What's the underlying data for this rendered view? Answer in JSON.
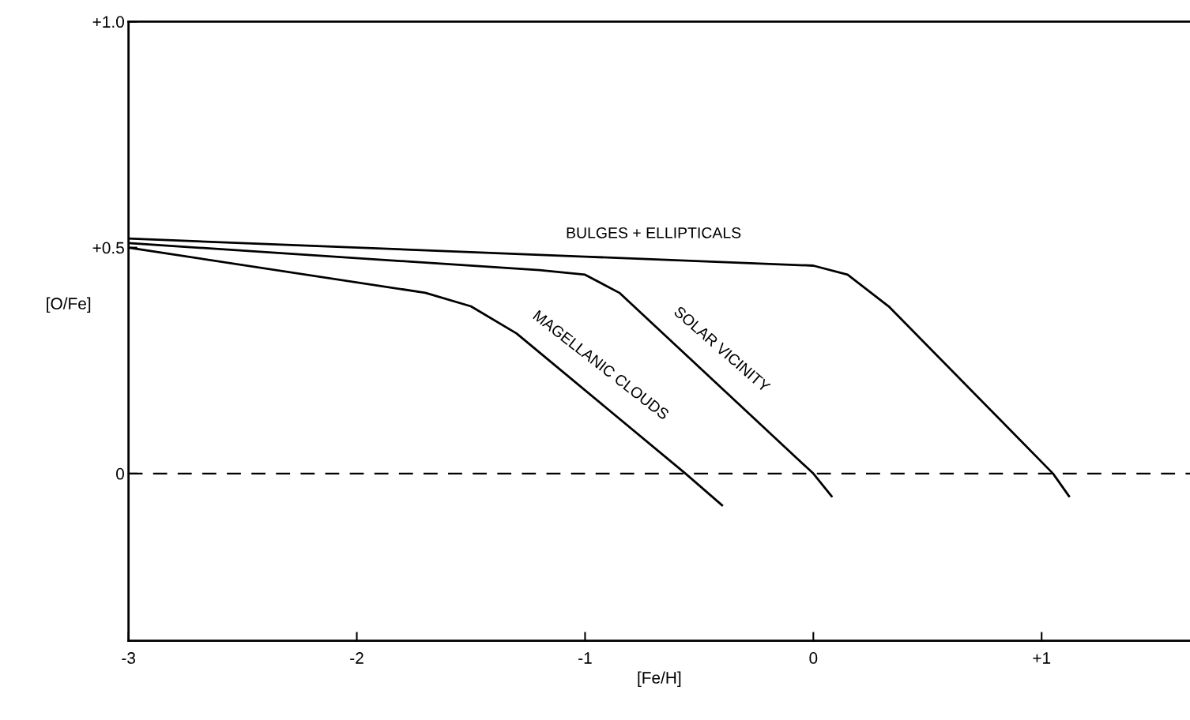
{
  "chart_data": {
    "type": "line",
    "xlabel": "[Fe/H]",
    "ylabel": "[O/Fe]",
    "xlim": [
      -3,
      1.65
    ],
    "ylim": [
      -0.37,
      1.0
    ],
    "xticks": [
      -3,
      -2,
      -1,
      0,
      {
        "value": 1,
        "label": "+1"
      }
    ],
    "yticks": [
      0,
      {
        "value": 0.5,
        "label": "+0.5"
      },
      {
        "value": 1.0,
        "label": "+1.0"
      }
    ],
    "grid": false,
    "legend": false,
    "marker": "none",
    "line_style": "solid",
    "ref_lines": [
      {
        "axis": "y",
        "value": 0,
        "line_style": "dashed",
        "color": "#000000"
      }
    ],
    "series": [
      {
        "name": "BULGES + ELLIPTICALS",
        "color": "#000000",
        "x": [
          -3,
          -1,
          0,
          0.15,
          0.33,
          1.05,
          1.12
        ],
        "values": [
          0.52,
          0.48,
          0.46,
          0.44,
          0.37,
          0.0,
          -0.05
        ]
      },
      {
        "name": "SOLAR VICINITY",
        "color": "#000000",
        "x": [
          -3,
          -1.2,
          -1,
          -0.85,
          0,
          0.08
        ],
        "values": [
          0.51,
          0.45,
          0.44,
          0.4,
          0.0,
          -0.05
        ]
      },
      {
        "name": "MAGELLANIC CLOUDS",
        "color": "#000000",
        "x": [
          -3,
          -1.7,
          -1.5,
          -1.3,
          -0.56,
          -0.4
        ],
        "values": [
          0.5,
          0.4,
          0.37,
          0.31,
          0.0,
          -0.07
        ]
      }
    ]
  }
}
